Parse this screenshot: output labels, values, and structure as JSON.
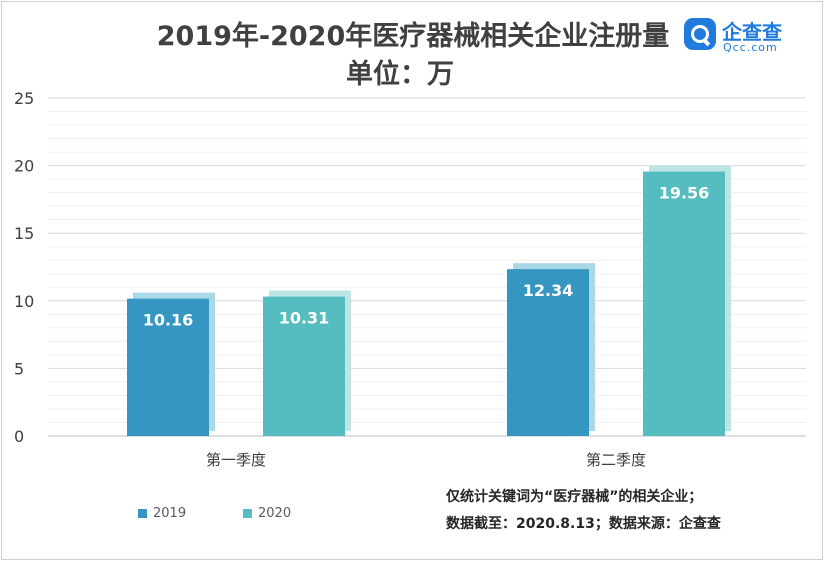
{
  "chart_data": {
    "type": "bar",
    "title": "2019年-2020年医疗器械相关企业注册量",
    "subtitle": "单位：万",
    "categories": [
      "第一季度",
      "第二季度"
    ],
    "series": [
      {
        "name": "2019",
        "values": [
          10.16,
          12.34
        ],
        "color": "#3596c1",
        "shadow": "#a9d8e6"
      },
      {
        "name": "2020",
        "values": [
          10.31,
          19.56
        ],
        "color": "#55bcbf",
        "shadow": "#bde5e6"
      }
    ],
    "ylim": [
      0,
      25
    ],
    "yticks": [
      0,
      5,
      10,
      15,
      20,
      25
    ],
    "ytick_labels": [
      "0",
      "5",
      "10",
      "15",
      "20",
      "25"
    ],
    "data_labels": [
      [
        "10.16",
        "12.34"
      ],
      [
        "10.31",
        "19.56"
      ]
    ],
    "xlabel": "",
    "ylabel": "",
    "grid": true,
    "legend_position": "bottom-left"
  },
  "logo": {
    "text_cn": "企查查",
    "text_en": "Qcc.com"
  },
  "notes": {
    "line1": "仅统计关键词为“医疗器械”的相关企业；",
    "line2": "数据截至：2020.8.13；数据来源：企查查"
  },
  "colors": {
    "text": "#404040",
    "grid": "#e5e5e5",
    "axis": "#bfbfbf"
  }
}
